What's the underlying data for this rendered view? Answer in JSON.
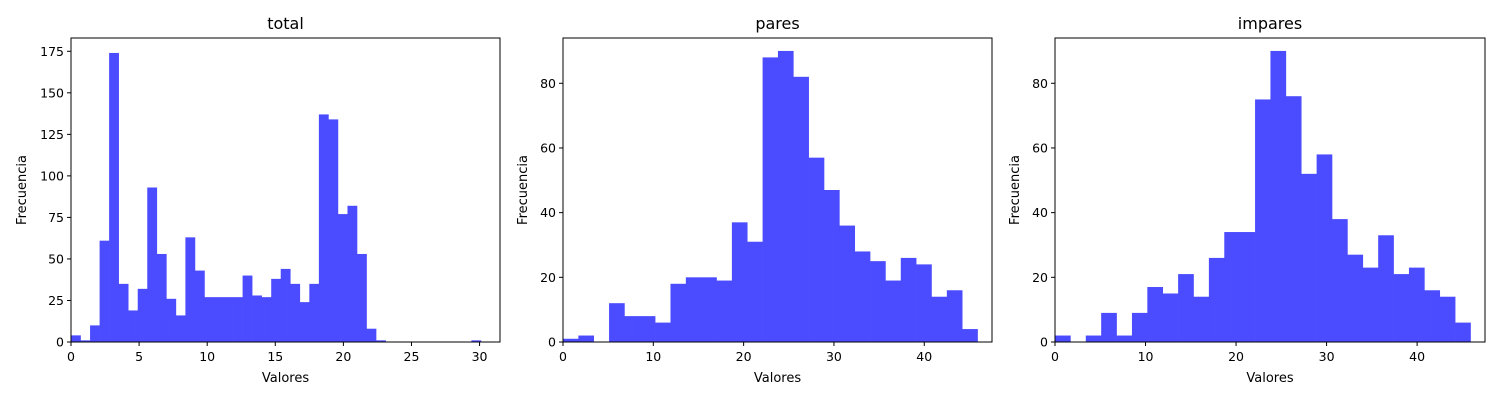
{
  "colors": {
    "bar": "#4b4bff",
    "axis": "#000000",
    "background": "#ffffff"
  },
  "chart_data": [
    {
      "type": "bar",
      "title": "total",
      "xlabel": "Valores",
      "ylabel": "Frecuencia",
      "xlim": [
        0,
        31.5
      ],
      "ylim": [
        0,
        183
      ],
      "xticks": [
        0,
        5,
        10,
        15,
        20,
        25,
        30
      ],
      "yticks": [
        0,
        25,
        50,
        75,
        100,
        125,
        150,
        175
      ],
      "bins": {
        "start": 0,
        "width": 0.7
      },
      "values": [
        4,
        1,
        10,
        61,
        174,
        35,
        19,
        32,
        93,
        53,
        26,
        16,
        63,
        43,
        27,
        27,
        27,
        27,
        40,
        28,
        27,
        38,
        44,
        35,
        24,
        35,
        137,
        134,
        77,
        82,
        53,
        8,
        1,
        0,
        0,
        0,
        0,
        0,
        0,
        0,
        0,
        0,
        1,
        0,
        0
      ]
    },
    {
      "type": "bar",
      "title": "pares",
      "xlabel": "Valores",
      "ylabel": "Frecuencia",
      "xlim": [
        0,
        47.5
      ],
      "ylim": [
        0,
        94
      ],
      "xticks": [
        0,
        10,
        20,
        30,
        40
      ],
      "yticks": [
        0,
        20,
        40,
        60,
        80
      ],
      "bins": {
        "start": 0,
        "width": 1.7
      },
      "values": [
        1,
        2,
        0,
        12,
        8,
        8,
        6,
        18,
        20,
        20,
        19,
        37,
        31,
        88,
        90,
        82,
        57,
        47,
        36,
        28,
        25,
        19,
        26,
        24,
        14,
        16,
        4
      ]
    },
    {
      "type": "bar",
      "title": "impares",
      "xlabel": "Valores",
      "ylabel": "Frecuencia",
      "xlim": [
        0,
        47.5
      ],
      "ylim": [
        0,
        94
      ],
      "xticks": [
        0,
        10,
        20,
        30,
        40
      ],
      "yticks": [
        0,
        20,
        40,
        60,
        80
      ],
      "bins": {
        "start": 0,
        "width": 1.7
      },
      "values": [
        2,
        0,
        2,
        9,
        2,
        9,
        17,
        15,
        21,
        14,
        26,
        34,
        34,
        75,
        90,
        76,
        52,
        58,
        38,
        27,
        23,
        33,
        21,
        23,
        16,
        14,
        6
      ]
    }
  ]
}
